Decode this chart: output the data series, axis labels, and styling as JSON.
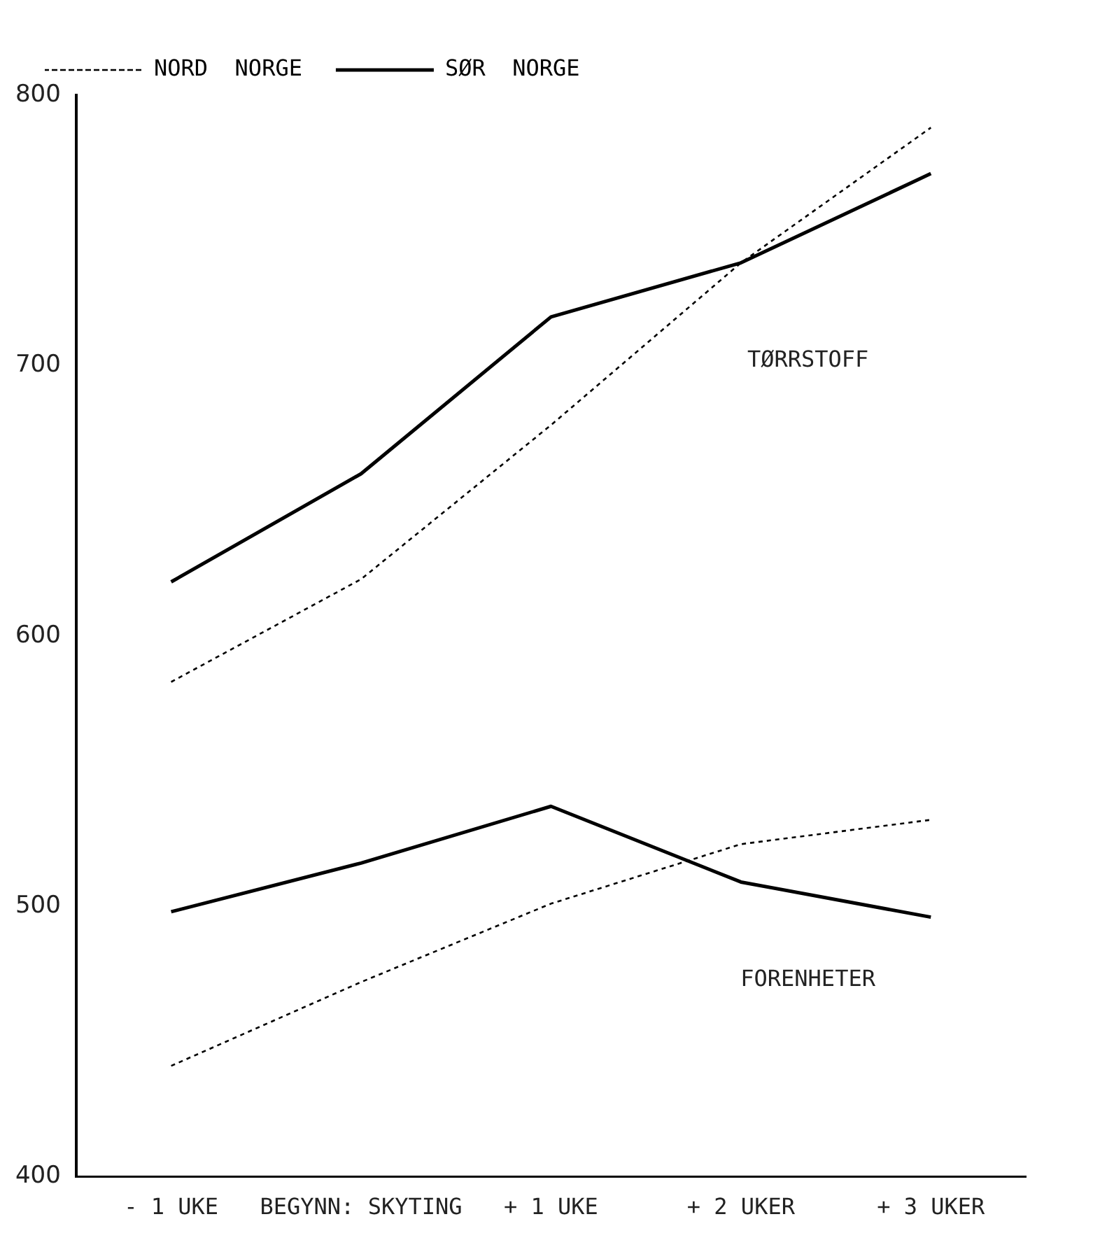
{
  "chart_data": {
    "type": "line",
    "categories": [
      "- 1 UKE",
      "BEGYNN: SKYTING",
      "+ 1 UKE",
      "+ 2 UKER",
      "+ 3 UKER"
    ],
    "series": [
      {
        "name": "NORD  NORGE",
        "color": "#000000",
        "line_style": "dotted",
        "values": [
          583,
          621,
          678,
          738,
          788
        ]
      },
      {
        "name": "SØR  NORGE",
        "color": "#000000",
        "line_style": "solid",
        "values": [
          620,
          660,
          718,
          738,
          771
        ]
      },
      {
        "color": "#000000",
        "line_style": "dotted",
        "values": [
          441,
          472,
          501,
          523,
          532
        ]
      },
      {
        "color": "#000000",
        "line_style": "solid",
        "values": [
          498,
          516,
          537,
          509,
          496
        ]
      }
    ],
    "ylim": [
      400,
      800
    ],
    "yticks": [
      400,
      500,
      600,
      700,
      800
    ],
    "grid": false,
    "legend": "top left",
    "marker": "none",
    "annotations": [
      "TØRRSTOFF",
      "FORENHETER"
    ]
  }
}
